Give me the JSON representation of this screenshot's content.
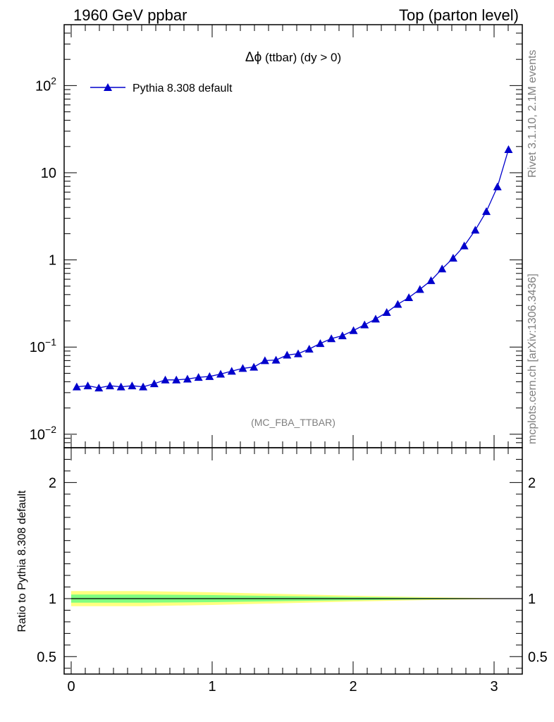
{
  "header": {
    "left": "1960 GeV ppbar",
    "right": "Top (parton level)"
  },
  "plot_title_symbol": "Δϕ",
  "plot_title_rest": " (ttbar) (dy > 0)",
  "analysis_tag": "(MC_FBA_TTBAR)",
  "side_text_top": "Rivet 3.1.10,  2.1M events",
  "side_text_bottom": "mcplots.cern.ch [arXiv:1306.3436]",
  "colors": {
    "series": "#0000cc",
    "band_outer": "#ffff80",
    "band_inner": "#80ff80",
    "ratio_line": "#000000"
  },
  "chart_data": [
    {
      "type": "line",
      "scale": "log",
      "ylim": [
        0.007,
        500
      ],
      "xlim": [
        -0.05,
        3.2
      ],
      "ytick_labels": [
        {
          "value": 0.01,
          "base": "10",
          "exp": "−2"
        },
        {
          "value": 0.1,
          "base": "10",
          "exp": "−1"
        },
        {
          "value": 1,
          "base": "1",
          "exp": ""
        },
        {
          "value": 10,
          "base": "10",
          "exp": ""
        },
        {
          "value": 100,
          "base": "10",
          "exp": "2"
        }
      ],
      "legend": "top-left",
      "series": [
        {
          "name": "Pythia 8.308 default",
          "marker": "triangle",
          "x": [
            0.0393,
            0.1178,
            0.1963,
            0.2749,
            0.3534,
            0.432,
            0.5105,
            0.589,
            0.6676,
            0.7461,
            0.8247,
            0.9032,
            0.9817,
            1.0603,
            1.1388,
            1.2174,
            1.2959,
            1.3744,
            1.453,
            1.5315,
            1.6101,
            1.6886,
            1.7671,
            1.8457,
            1.9242,
            2.0028,
            2.0813,
            2.1598,
            2.2384,
            2.3169,
            2.3955,
            2.474,
            2.5525,
            2.6311,
            2.7096,
            2.7882,
            2.8667,
            2.9452,
            3.0238,
            3.1023
          ],
          "values": [
            0.035,
            0.036,
            0.034,
            0.036,
            0.035,
            0.036,
            0.035,
            0.038,
            0.042,
            0.042,
            0.043,
            0.045,
            0.046,
            0.049,
            0.053,
            0.057,
            0.059,
            0.07,
            0.071,
            0.081,
            0.084,
            0.095,
            0.11,
            0.125,
            0.135,
            0.155,
            0.18,
            0.21,
            0.25,
            0.31,
            0.37,
            0.46,
            0.58,
            0.79,
            1.05,
            1.45,
            2.2,
            3.6,
            6.9,
            18.5
          ]
        }
      ]
    },
    {
      "type": "area",
      "ylabel": "Ratio to Pythia 8.308 default",
      "ylim": [
        0.35,
        2.3
      ],
      "xlim": [
        -0.05,
        3.2
      ],
      "yticks": [
        0.5,
        1,
        2
      ],
      "ytick_labels": [
        "0.5",
        "1",
        "2"
      ],
      "xticks": [
        0,
        1,
        2,
        3
      ],
      "xtick_labels": [
        "0",
        "1",
        "2",
        "3"
      ],
      "series": [
        {
          "name": "",
          "x": [
            0.0,
            3.2
          ],
          "values": [
            1.0,
            1.0
          ]
        }
      ],
      "bands": {
        "x": [
          0.0,
          0.5,
          1.0,
          1.5,
          2.0,
          2.5,
          3.0,
          3.2
        ],
        "outer_half_width": [
          0.065,
          0.065,
          0.055,
          0.04,
          0.025,
          0.013,
          0.004,
          0.002
        ],
        "inner_half_width": [
          0.035,
          0.035,
          0.03,
          0.022,
          0.014,
          0.007,
          0.002,
          0.001
        ]
      }
    }
  ]
}
